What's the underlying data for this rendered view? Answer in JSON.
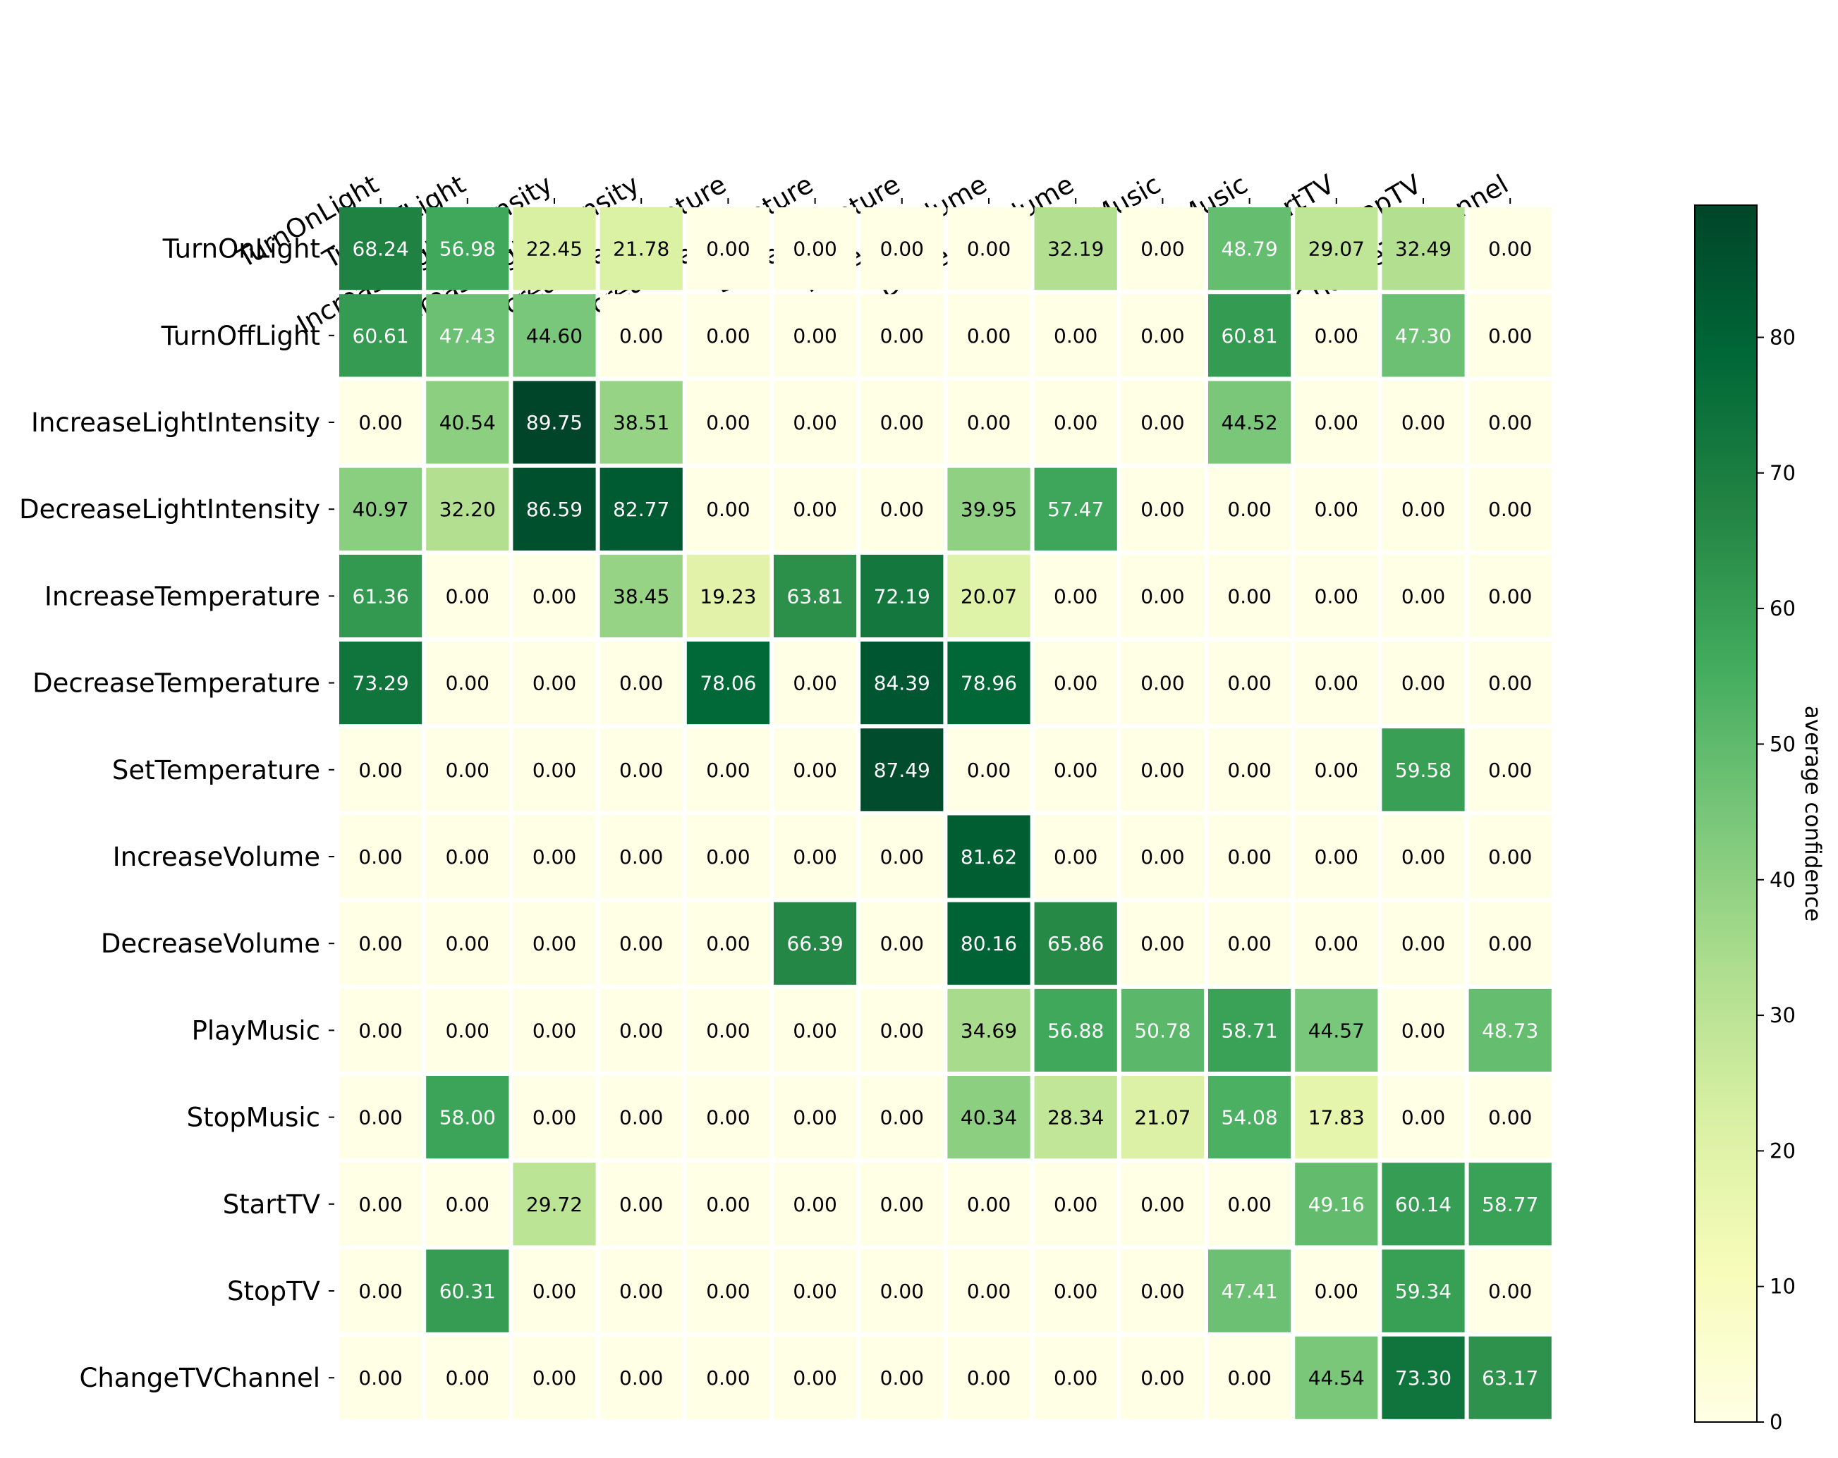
{
  "chart_data": {
    "type": "heatmap",
    "title": "",
    "xlabel": "",
    "ylabel": "",
    "x_labels": [
      "TurnOnLight",
      "TurnOffLight",
      "IncreaseLightIntensity",
      "DecreaseLightIntensity",
      "IncreaseTemperature",
      "DecreaseTemperature",
      "SetTemperature",
      "IncreaseVolume",
      "DecreaseVolume",
      "PlayMusic",
      "StopMusic",
      "StartTV",
      "StopTV",
      "ChangeTVChannel"
    ],
    "y_labels": [
      "TurnOnLight",
      "TurnOffLight",
      "IncreaseLightIntensity",
      "DecreaseLightIntensity",
      "IncreaseTemperature",
      "DecreaseTemperature",
      "SetTemperature",
      "IncreaseVolume",
      "DecreaseVolume",
      "PlayMusic",
      "StopMusic",
      "StartTV",
      "StopTV",
      "ChangeTVChannel"
    ],
    "values": [
      [
        68.24,
        56.98,
        22.45,
        21.78,
        0.0,
        0.0,
        0.0,
        0.0,
        32.19,
        0.0,
        48.79,
        29.07,
        32.49,
        0.0
      ],
      [
        60.61,
        47.43,
        44.6,
        0.0,
        0.0,
        0.0,
        0.0,
        0.0,
        0.0,
        0.0,
        60.81,
        0.0,
        47.3,
        0.0
      ],
      [
        0.0,
        40.54,
        89.75,
        38.51,
        0.0,
        0.0,
        0.0,
        0.0,
        0.0,
        0.0,
        44.52,
        0.0,
        0.0,
        0.0
      ],
      [
        40.97,
        32.2,
        86.59,
        82.77,
        0.0,
        0.0,
        0.0,
        39.95,
        57.47,
        0.0,
        0.0,
        0.0,
        0.0,
        0.0
      ],
      [
        61.36,
        0.0,
        0.0,
        38.45,
        19.23,
        63.81,
        72.19,
        20.07,
        0.0,
        0.0,
        0.0,
        0.0,
        0.0,
        0.0
      ],
      [
        73.29,
        0.0,
        0.0,
        0.0,
        78.06,
        0.0,
        84.39,
        78.96,
        0.0,
        0.0,
        0.0,
        0.0,
        0.0,
        0.0
      ],
      [
        0.0,
        0.0,
        0.0,
        0.0,
        0.0,
        0.0,
        87.49,
        0.0,
        0.0,
        0.0,
        0.0,
        0.0,
        59.58,
        0.0
      ],
      [
        0.0,
        0.0,
        0.0,
        0.0,
        0.0,
        0.0,
        0.0,
        81.62,
        0.0,
        0.0,
        0.0,
        0.0,
        0.0,
        0.0
      ],
      [
        0.0,
        0.0,
        0.0,
        0.0,
        0.0,
        66.39,
        0.0,
        80.16,
        65.86,
        0.0,
        0.0,
        0.0,
        0.0,
        0.0
      ],
      [
        0.0,
        0.0,
        0.0,
        0.0,
        0.0,
        0.0,
        0.0,
        34.69,
        56.88,
        50.78,
        58.71,
        44.57,
        0.0,
        48.73
      ],
      [
        0.0,
        58.0,
        0.0,
        0.0,
        0.0,
        0.0,
        0.0,
        40.34,
        28.34,
        21.07,
        54.08,
        17.83,
        0.0,
        0.0
      ],
      [
        0.0,
        0.0,
        29.72,
        0.0,
        0.0,
        0.0,
        0.0,
        0.0,
        0.0,
        0.0,
        0.0,
        49.16,
        60.14,
        58.77
      ],
      [
        0.0,
        60.31,
        0.0,
        0.0,
        0.0,
        0.0,
        0.0,
        0.0,
        0.0,
        0.0,
        47.41,
        0.0,
        59.34,
        0.0
      ],
      [
        0.0,
        0.0,
        0.0,
        0.0,
        0.0,
        0.0,
        0.0,
        0.0,
        0.0,
        0.0,
        0.0,
        44.54,
        73.3,
        63.17
      ]
    ],
    "value_format": "0.00",
    "colormap": "YlGn",
    "vmin": 0,
    "vmax": 89.75,
    "colorbar": {
      "label": "average confidence",
      "ticks": [
        0,
        10,
        20,
        30,
        40,
        50,
        60,
        70,
        80
      ]
    },
    "x_tick_position": "top",
    "x_tick_rotation_deg": -30,
    "legend": "colorbar-right",
    "grid": false
  }
}
